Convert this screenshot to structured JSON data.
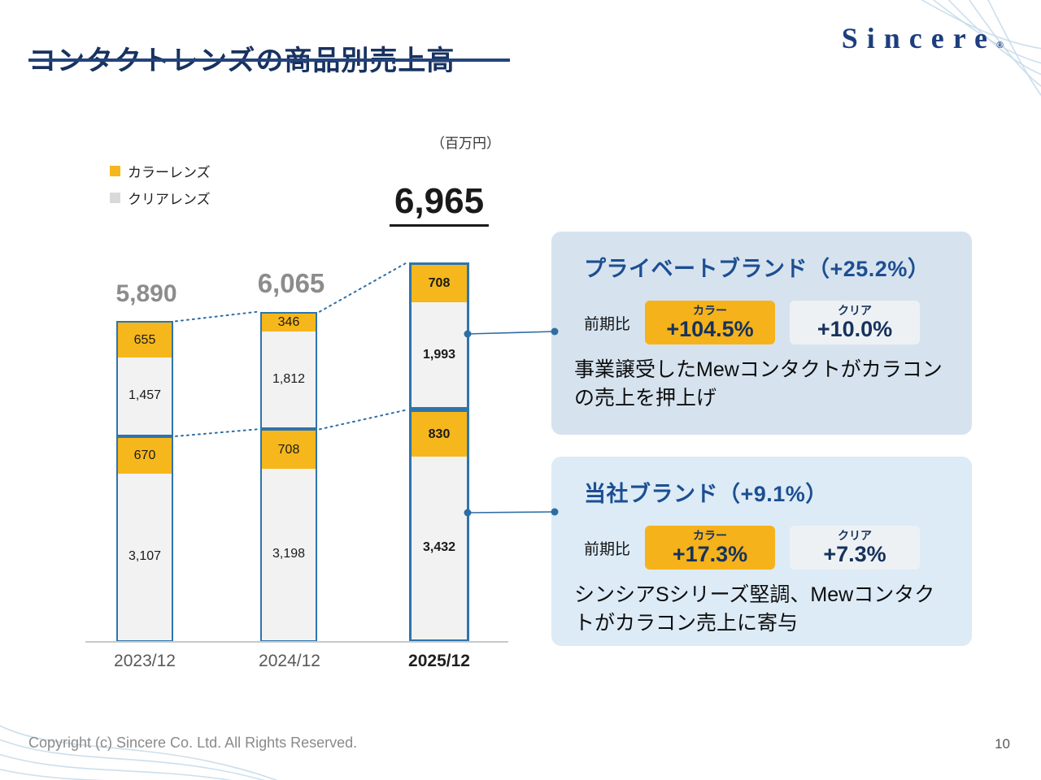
{
  "header": {
    "title": "コンタクトレンズの商品別売上高",
    "logo": "Sincere",
    "logo_reg": "®"
  },
  "chart_data": {
    "type": "bar",
    "stacked": true,
    "title": "コンタクトレンズの商品別売上高",
    "unit_label": "（百万円）",
    "legend_position": "top-left",
    "legend": [
      {
        "label": "カラーレンズ",
        "color": "#f6b71c"
      },
      {
        "label": "クリアレンズ",
        "color": "#d9d9d9"
      }
    ],
    "categories": [
      "2023/12",
      "2024/12",
      "2025/12"
    ],
    "totals": [
      {
        "label": "5,890",
        "value": 5890
      },
      {
        "label": "6,065",
        "value": 6065
      },
      {
        "label": "6,965",
        "value": 6965
      }
    ],
    "highlight_index": 2,
    "bars": [
      {
        "category": "2023/12",
        "total": 5890,
        "groups": [
          {
            "name": "private-brand",
            "segments": [
              {
                "label": "655",
                "value": 655,
                "type": "color"
              },
              {
                "label": "1,457",
                "value": 1457,
                "type": "clear"
              }
            ]
          },
          {
            "name": "own-brand",
            "segments": [
              {
                "label": "670",
                "value": 670,
                "type": "color"
              },
              {
                "label": "3,107",
                "value": 3107,
                "type": "clear"
              }
            ]
          }
        ]
      },
      {
        "category": "2024/12",
        "total": 6065,
        "groups": [
          {
            "name": "private-brand",
            "segments": [
              {
                "label": "346",
                "value": 346,
                "type": "color"
              },
              {
                "label": "1,812",
                "value": 1812,
                "type": "clear"
              }
            ]
          },
          {
            "name": "own-brand",
            "segments": [
              {
                "label": "708",
                "value": 708,
                "type": "color"
              },
              {
                "label": "3,198",
                "value": 3198,
                "type": "clear"
              }
            ]
          }
        ]
      },
      {
        "category": "2025/12",
        "total": 6965,
        "groups": [
          {
            "name": "private-brand",
            "segments": [
              {
                "label": "708",
                "value": 708,
                "type": "color"
              },
              {
                "label": "1,993",
                "value": 1993,
                "type": "clear"
              }
            ]
          },
          {
            "name": "own-brand",
            "segments": [
              {
                "label": "830",
                "value": 830,
                "type": "color"
              },
              {
                "label": "3,432",
                "value": 3432,
                "type": "clear"
              }
            ]
          }
        ]
      }
    ]
  },
  "callouts": [
    {
      "title": "プライベートブランド（+25.2%）",
      "compare_label": "前期比",
      "chips": [
        {
          "type": "color",
          "name": "カラー",
          "value": "+104.5%"
        },
        {
          "type": "clear",
          "name": "クリア",
          "value": "+10.0%"
        }
      ],
      "body": "事業譲受したMewコンタクトがカラコンの売上を押上げ"
    },
    {
      "title": "当社ブランド（+9.1%）",
      "compare_label": "前期比",
      "chips": [
        {
          "type": "color",
          "name": "カラー",
          "value": "+17.3%"
        },
        {
          "type": "clear",
          "name": "クリア",
          "value": "+7.3%"
        }
      ],
      "body": "シンシアSシリーズ堅調、Mewコンタクトがカラコン売上に寄与"
    }
  ],
  "footer": {
    "copyright": "Copyright (c) Sincere Co. Ltd. All Rights Reserved.",
    "page": "10"
  },
  "colors": {
    "accent_yellow": "#f6b71c",
    "clear_gray": "#f2f2f2",
    "bar_border": "#2e74ad",
    "title_navy": "#17325f",
    "callout_title_blue": "#1d4e91",
    "callout_bg_1": "#d6e3ef",
    "callout_bg_2": "#dcebf6"
  }
}
